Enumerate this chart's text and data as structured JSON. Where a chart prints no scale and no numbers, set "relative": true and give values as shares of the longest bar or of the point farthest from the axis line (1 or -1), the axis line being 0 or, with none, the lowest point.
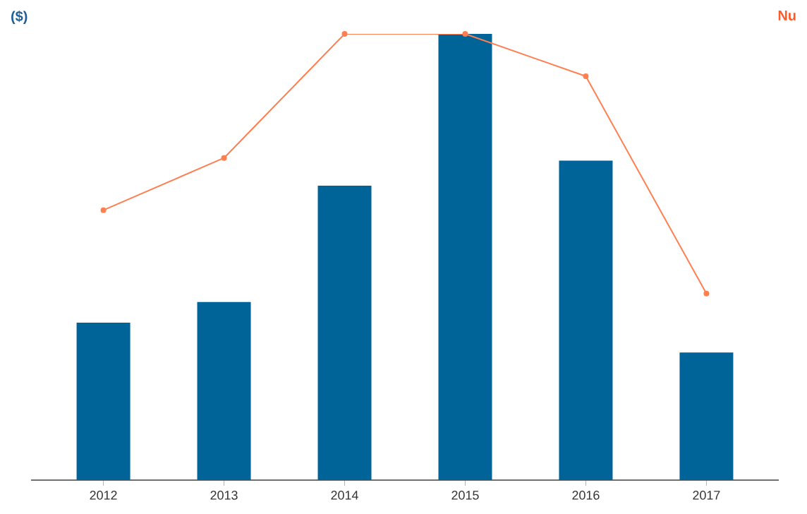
{
  "chart_data": {
    "type": "bar",
    "relative": true,
    "ylabel": "($)",
    "y2label": "Nu",
    "categories": [
      "2012",
      "2013",
      "2014",
      "2015",
      "2016",
      "2017"
    ],
    "series": [
      {
        "color": "#006499",
        "values": [
          0.353,
          0.399,
          0.66,
          1,
          0.716,
          0.286
        ]
      },
      {
        "type": "line",
        "color": "#ff7f50",
        "marker": "circle",
        "values": [
          0.605,
          0.722,
          1,
          1,
          0.905,
          0.418
        ]
      }
    ],
    "grid": false
  }
}
